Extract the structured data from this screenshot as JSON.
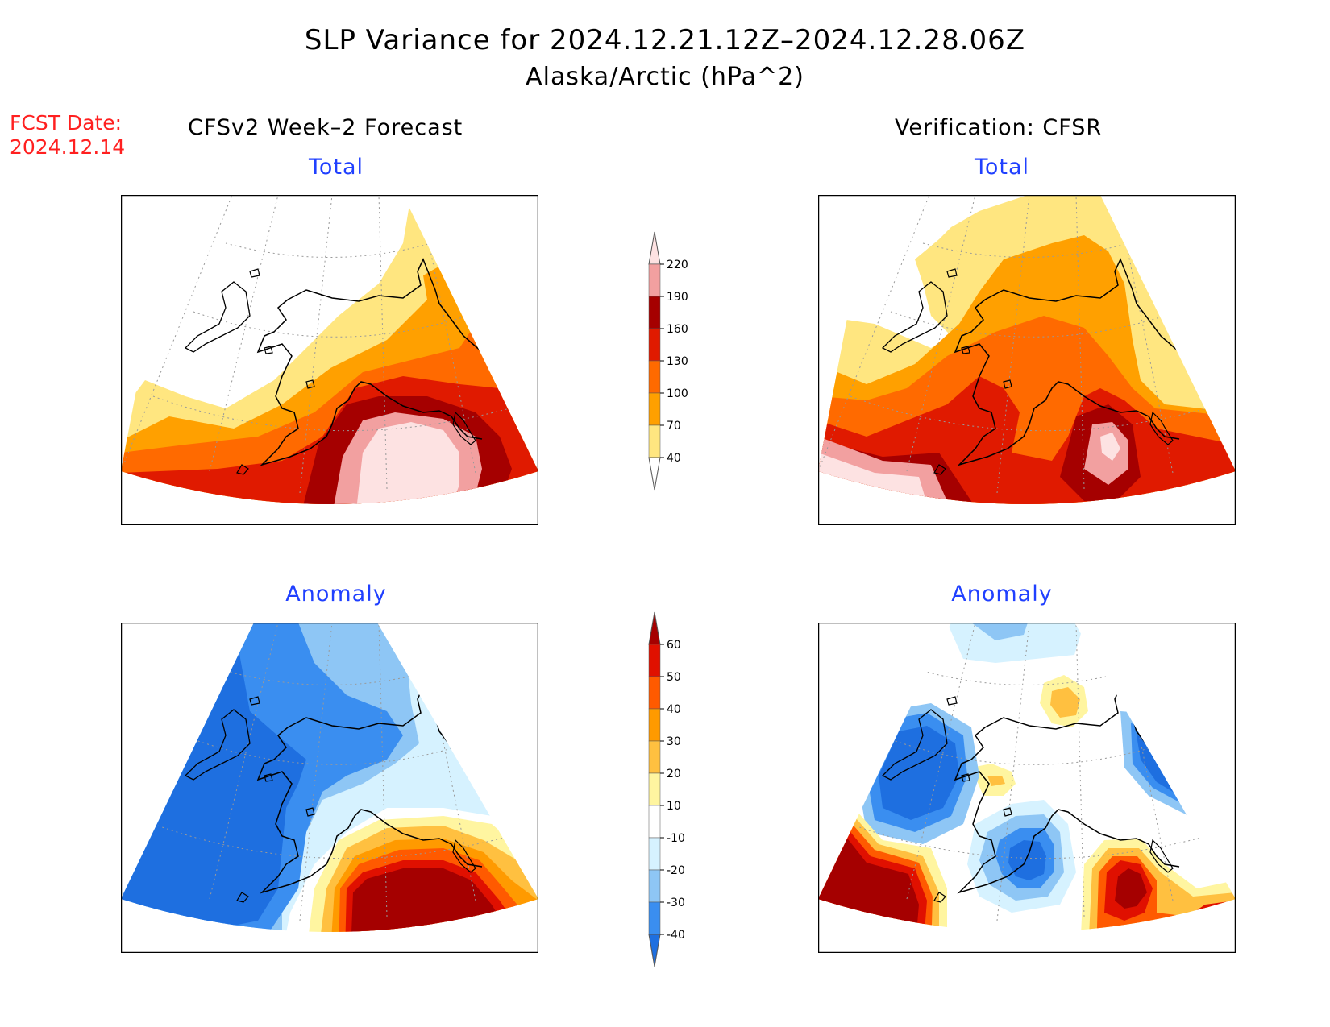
{
  "title": "SLP Variance for 2024.12.21.12Z–2024.12.28.06Z",
  "subtitle": "Alaska/Arctic (hPa^2)",
  "fcst_date_label": "FCST Date:",
  "fcst_date_value": "2024.12.14",
  "left_header": "CFSv2 Week–2 Forecast",
  "right_header": "Verification: CFSR",
  "panels": {
    "fcst_total_title": "Total",
    "ver_total_title": "Total",
    "fcst_anom_title": "Anomaly",
    "ver_anom_title": "Anomaly"
  },
  "colorbars": {
    "total": {
      "labels": [
        "40",
        "70",
        "100",
        "130",
        "160",
        "190",
        "220"
      ],
      "colors": [
        "#ffffff",
        "#ffe680",
        "#ffa000",
        "#ff6a00",
        "#e01a00",
        "#a50000",
        "#f2a0a0",
        "#fde2e2"
      ]
    },
    "anomaly": {
      "labels": [
        "-40",
        "-30",
        "-20",
        "-10",
        "10",
        "20",
        "30",
        "40",
        "50",
        "60"
      ],
      "colors": [
        "#1e6fe0",
        "#3a8ef0",
        "#8ec6f5",
        "#d6f2ff",
        "#ffffff",
        "#fff5a0",
        "#ffc040",
        "#ff9a00",
        "#ff5a00",
        "#e01000",
        "#a50000"
      ]
    }
  }
}
